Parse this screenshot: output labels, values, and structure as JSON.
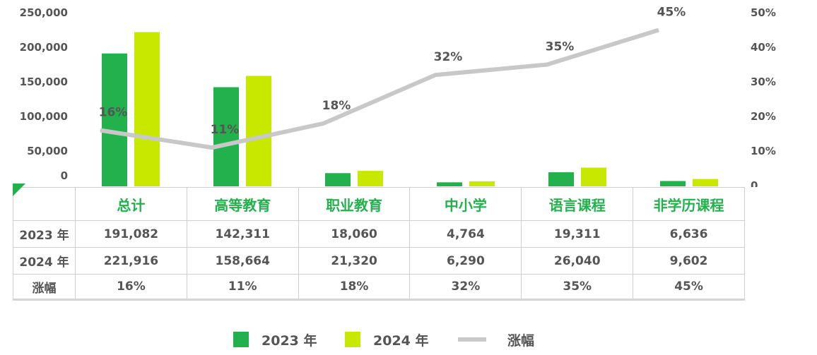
{
  "chart_data": {
    "type": "bar",
    "categories": [
      "总计",
      "高等教育",
      "职业教育",
      "中小学",
      "语言课程",
      "非学历课程"
    ],
    "series": [
      {
        "name": "2023 年",
        "kind": "bar",
        "color": "#22b14c",
        "values": [
          191082,
          142311,
          18060,
          4764,
          19311,
          6636
        ]
      },
      {
        "name": "2024 年",
        "kind": "bar",
        "color": "#c9e800",
        "values": [
          221916,
          158664,
          21320,
          6290,
          26040,
          9602
        ]
      },
      {
        "name": "涨幅",
        "kind": "line",
        "axis": "right",
        "color": "#c8c8c8",
        "values": [
          16,
          11,
          18,
          32,
          35,
          45
        ]
      }
    ],
    "y_left": {
      "range": [
        0,
        250000
      ],
      "ticks": [
        "0",
        "50,000",
        "100,000",
        "150,000",
        "200,000",
        "250,000"
      ]
    },
    "y_right": {
      "range": [
        0,
        50
      ],
      "ticks": [
        "0",
        "10%",
        "20%",
        "30%",
        "40%",
        "50%"
      ]
    },
    "line_labels": [
      "16%",
      "11%",
      "18%",
      "32%",
      "35%",
      "45%"
    ],
    "grid": false,
    "legend_position": "bottom"
  },
  "table": {
    "columns": [
      "总计",
      "高等教育",
      "职业教育",
      "中小学",
      "语言课程",
      "非学历课程"
    ],
    "rows": [
      {
        "label": "2023 年",
        "cells": [
          "191,082",
          "142,311",
          "18,060",
          "4,764",
          "19,311",
          "6,636"
        ]
      },
      {
        "label": "2024 年",
        "cells": [
          "221,916",
          "158,664",
          "21,320",
          "6,290",
          "26,040",
          "9,602"
        ]
      },
      {
        "label": "涨幅",
        "cells": [
          "16%",
          "11%",
          "18%",
          "32%",
          "35%",
          "45%"
        ]
      }
    ]
  },
  "legend": {
    "items": [
      {
        "label": "2023 年",
        "color": "#22b14c"
      },
      {
        "label": "2024 年",
        "color": "#c9e800"
      },
      {
        "label": "涨幅",
        "color": "#c8c8c8"
      }
    ]
  }
}
